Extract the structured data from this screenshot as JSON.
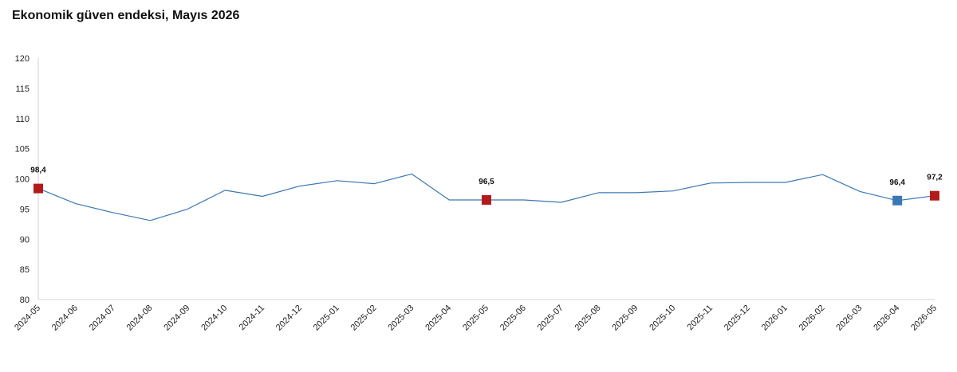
{
  "page": {
    "title": "Ekonomik güven endeksi, Mayıs 2026"
  },
  "chart_data": {
    "type": "line",
    "title": "Ekonomik güven endeksi, Mayıs 2026",
    "xlabel": "",
    "ylabel": "",
    "x": [
      "2024-05",
      "2024-06",
      "2024-07",
      "2024-08",
      "2024-09",
      "2024-10",
      "2024-11",
      "2024-12",
      "2025-01",
      "2025-02",
      "2025-03",
      "2025-04",
      "2025-05",
      "2025-06",
      "2025-07",
      "2025-08",
      "2025-09",
      "2025-10",
      "2025-11",
      "2025-12",
      "2026-01",
      "2026-02",
      "2026-03",
      "2026-04",
      "2026-05"
    ],
    "series": [
      {
        "values": [
          98.4,
          95.9,
          94.4,
          93.1,
          95.0,
          98.1,
          97.1,
          98.8,
          99.7,
          99.2,
          100.8,
          96.5,
          96.5,
          96.5,
          96.1,
          97.7,
          97.7,
          98.0,
          99.3,
          99.4,
          99.4,
          100.7,
          97.9,
          96.4,
          97.2
        ],
        "color": "#3a78b5"
      }
    ],
    "highlighted_points": [
      {
        "x": "2024-05",
        "value": 98.4,
        "label": "98,4",
        "color": "#b31b1b"
      },
      {
        "x": "2025-05",
        "value": 96.5,
        "label": "96,5",
        "color": "#b31b1b"
      },
      {
        "x": "2026-04",
        "value": 96.4,
        "label": "96,4",
        "color": "#3a78b5"
      },
      {
        "x": "2026-05",
        "value": 97.2,
        "label": "97,2",
        "color": "#b31b1b"
      }
    ],
    "ylim": [
      80,
      120
    ],
    "yticks": [
      80,
      85,
      90,
      95,
      100,
      105,
      110,
      115,
      120
    ],
    "grid": false,
    "legend": "none"
  }
}
